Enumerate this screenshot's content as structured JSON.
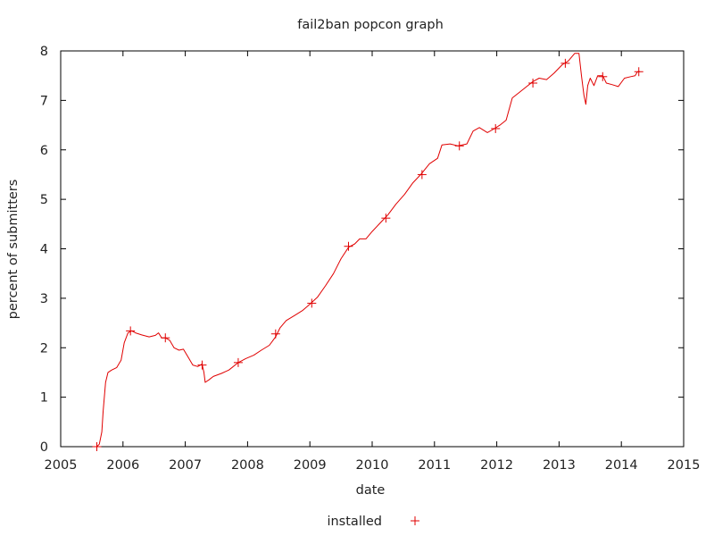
{
  "chart_data": {
    "type": "line",
    "title": "fail2ban popcon graph",
    "xlabel": "date",
    "ylabel": "percent of submitters",
    "xlim": [
      2005,
      2015
    ],
    "ylim": [
      0,
      8
    ],
    "x_ticks": [
      "2005",
      "2006",
      "2007",
      "2008",
      "2009",
      "2010",
      "2011",
      "2012",
      "2013",
      "2014",
      "2015"
    ],
    "y_ticks": [
      "0",
      "1",
      "2",
      "3",
      "4",
      "5",
      "6",
      "7",
      "8"
    ],
    "legend_position": "bottom-center",
    "series": [
      {
        "name": "installed",
        "color": "#e00000",
        "marker": "plus",
        "points": [
          [
            2005.58,
            0.0
          ],
          [
            2005.62,
            0.05
          ],
          [
            2005.66,
            0.3
          ],
          [
            2005.68,
            0.7
          ],
          [
            2005.72,
            1.3
          ],
          [
            2005.76,
            1.5
          ],
          [
            2005.82,
            1.55
          ],
          [
            2005.9,
            1.6
          ],
          [
            2005.97,
            1.75
          ],
          [
            2006.02,
            2.1
          ],
          [
            2006.08,
            2.3
          ],
          [
            2006.14,
            2.34
          ],
          [
            2006.2,
            2.3
          ],
          [
            2006.3,
            2.26
          ],
          [
            2006.42,
            2.22
          ],
          [
            2006.52,
            2.25
          ],
          [
            2006.57,
            2.3
          ],
          [
            2006.62,
            2.2
          ],
          [
            2006.68,
            2.2
          ],
          [
            2006.75,
            2.15
          ],
          [
            2006.82,
            2.0
          ],
          [
            2006.9,
            1.95
          ],
          [
            2006.97,
            1.97
          ],
          [
            2007.05,
            1.8
          ],
          [
            2007.12,
            1.65
          ],
          [
            2007.2,
            1.62
          ],
          [
            2007.27,
            1.67
          ],
          [
            2007.3,
            1.5
          ],
          [
            2007.32,
            1.3
          ],
          [
            2007.38,
            1.35
          ],
          [
            2007.45,
            1.42
          ],
          [
            2007.58,
            1.48
          ],
          [
            2007.7,
            1.55
          ],
          [
            2007.85,
            1.7
          ],
          [
            2007.97,
            1.78
          ],
          [
            2008.1,
            1.85
          ],
          [
            2008.22,
            1.95
          ],
          [
            2008.35,
            2.05
          ],
          [
            2008.45,
            2.22
          ],
          [
            2008.52,
            2.4
          ],
          [
            2008.62,
            2.55
          ],
          [
            2008.75,
            2.65
          ],
          [
            2008.88,
            2.75
          ],
          [
            2009.0,
            2.88
          ],
          [
            2009.12,
            3.02
          ],
          [
            2009.25,
            3.25
          ],
          [
            2009.38,
            3.5
          ],
          [
            2009.5,
            3.8
          ],
          [
            2009.62,
            4.03
          ],
          [
            2009.72,
            4.1
          ],
          [
            2009.8,
            4.2
          ],
          [
            2009.9,
            4.2
          ],
          [
            2010.0,
            4.35
          ],
          [
            2010.15,
            4.55
          ],
          [
            2010.25,
            4.68
          ],
          [
            2010.38,
            4.9
          ],
          [
            2010.52,
            5.1
          ],
          [
            2010.65,
            5.33
          ],
          [
            2010.78,
            5.5
          ],
          [
            2010.92,
            5.72
          ],
          [
            2011.05,
            5.83
          ],
          [
            2011.12,
            6.1
          ],
          [
            2011.25,
            6.12
          ],
          [
            2011.38,
            6.08
          ],
          [
            2011.52,
            6.12
          ],
          [
            2011.62,
            6.38
          ],
          [
            2011.72,
            6.45
          ],
          [
            2011.85,
            6.35
          ],
          [
            2011.95,
            6.42
          ],
          [
            2012.05,
            6.5
          ],
          [
            2012.15,
            6.6
          ],
          [
            2012.25,
            7.05
          ],
          [
            2012.35,
            7.15
          ],
          [
            2012.48,
            7.28
          ],
          [
            2012.58,
            7.38
          ],
          [
            2012.68,
            7.45
          ],
          [
            2012.8,
            7.42
          ],
          [
            2012.92,
            7.55
          ],
          [
            2013.05,
            7.72
          ],
          [
            2013.15,
            7.8
          ],
          [
            2013.25,
            7.95
          ],
          [
            2013.32,
            7.95
          ],
          [
            2013.36,
            7.5
          ],
          [
            2013.4,
            7.1
          ],
          [
            2013.43,
            6.92
          ],
          [
            2013.46,
            7.3
          ],
          [
            2013.5,
            7.45
          ],
          [
            2013.56,
            7.3
          ],
          [
            2013.62,
            7.5
          ],
          [
            2013.7,
            7.5
          ],
          [
            2013.76,
            7.35
          ],
          [
            2013.85,
            7.32
          ],
          [
            2013.95,
            7.28
          ],
          [
            2014.05,
            7.45
          ],
          [
            2014.15,
            7.48
          ],
          [
            2014.22,
            7.5
          ],
          [
            2014.26,
            7.58
          ],
          [
            2014.3,
            7.58
          ]
        ],
        "marker_points": [
          [
            2005.58,
            0.0
          ],
          [
            2006.12,
            2.34
          ],
          [
            2006.68,
            2.2
          ],
          [
            2007.27,
            1.65
          ],
          [
            2007.85,
            1.7
          ],
          [
            2008.45,
            2.28
          ],
          [
            2009.03,
            2.9
          ],
          [
            2009.62,
            4.05
          ],
          [
            2010.22,
            4.62
          ],
          [
            2010.8,
            5.5
          ],
          [
            2011.4,
            6.08
          ],
          [
            2011.98,
            6.43
          ],
          [
            2012.58,
            7.35
          ],
          [
            2013.1,
            7.75
          ],
          [
            2013.7,
            7.48
          ],
          [
            2014.28,
            7.58
          ]
        ]
      }
    ]
  }
}
